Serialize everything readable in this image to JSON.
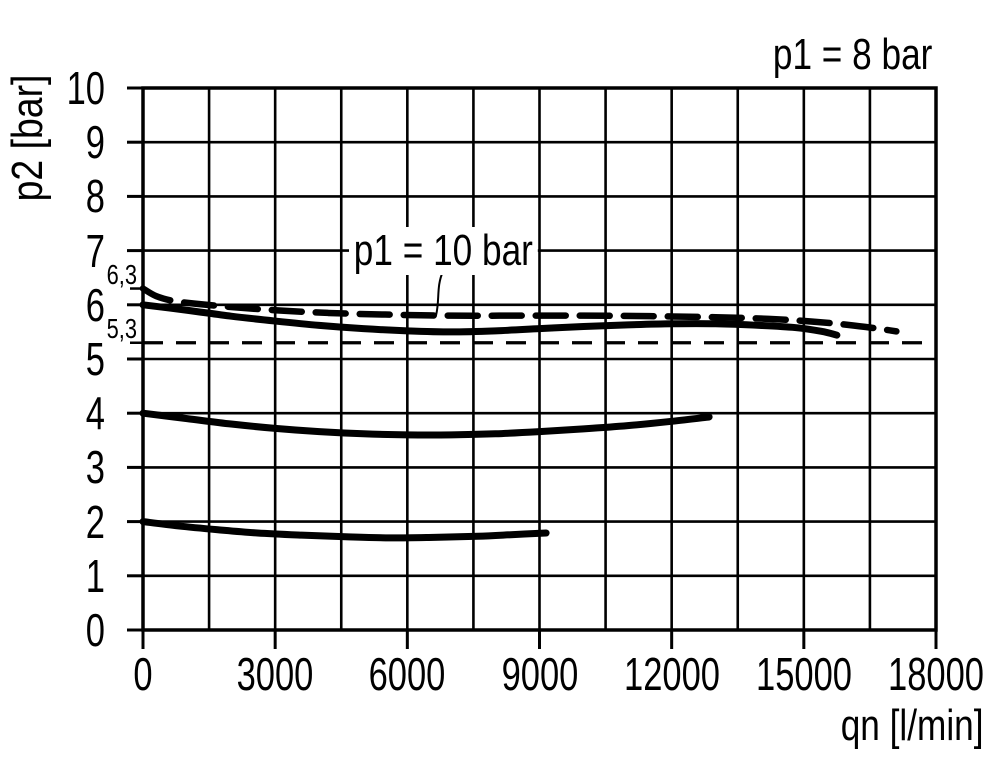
{
  "colors": {
    "ink": "#000000",
    "background": "#ffffff"
  },
  "chart_data": {
    "type": "line",
    "xlabel": "qn [l/min]",
    "ylabel": "p2 [bar]",
    "xlim": [
      0,
      18000
    ],
    "ylim": [
      0,
      10
    ],
    "grid": true,
    "legend_position": "none",
    "x_grid_step": 1500,
    "y_grid_step": 1,
    "x_tick_values": [
      0,
      3000,
      6000,
      9000,
      12000,
      15000,
      18000
    ],
    "x_tick_labels": [
      "0",
      "3000",
      "6000",
      "9000",
      "12000",
      "15000",
      "18000"
    ],
    "y_tick_values": [
      10,
      9,
      8,
      7,
      6,
      5,
      4,
      3,
      2,
      1,
      0
    ],
    "y_tick_labels": [
      "10",
      "9",
      "8",
      "7",
      "6",
      "5",
      "4",
      "3",
      "2",
      "1",
      "0"
    ],
    "y_marker_ticks": [
      {
        "label": "6,3",
        "value": 6.3
      },
      {
        "label": "5,3",
        "value": 5.3
      }
    ],
    "reference_lines": [
      {
        "y": 5.3,
        "style": "dashed"
      }
    ],
    "annotations": [
      {
        "id": "p1-8bar",
        "text": "p1 = 8 bar"
      },
      {
        "id": "p1-10bar",
        "text": "p1 = 10 bar",
        "leader_from": [
          6810,
          6.62
        ],
        "leader_to": [
          6650,
          5.8
        ]
      }
    ],
    "series": [
      {
        "id": "inlet-10bar",
        "name": "p1 = 10 bar",
        "style": "dashed",
        "points": [
          [
            0,
            6.3
          ],
          [
            300,
            6.16
          ],
          [
            700,
            6.07
          ],
          [
            1200,
            6.02
          ],
          [
            2000,
            5.96
          ],
          [
            3000,
            5.9
          ],
          [
            4200,
            5.85
          ],
          [
            5500,
            5.82
          ],
          [
            7000,
            5.8
          ],
          [
            8500,
            5.8
          ],
          [
            10000,
            5.8
          ],
          [
            11500,
            5.79
          ],
          [
            13000,
            5.77
          ],
          [
            14200,
            5.74
          ],
          [
            15200,
            5.69
          ],
          [
            16000,
            5.63
          ],
          [
            16600,
            5.57
          ],
          [
            17100,
            5.51
          ]
        ]
      },
      {
        "id": "inlet-8bar-set-6bar",
        "name": "p1 = 8 bar",
        "style": "solid",
        "points": [
          [
            0,
            6.0
          ],
          [
            1000,
            5.9
          ],
          [
            2000,
            5.79
          ],
          [
            3000,
            5.7
          ],
          [
            4000,
            5.62
          ],
          [
            5000,
            5.56
          ],
          [
            6000,
            5.52
          ],
          [
            7000,
            5.5
          ],
          [
            8000,
            5.52
          ],
          [
            9000,
            5.56
          ],
          [
            10000,
            5.6
          ],
          [
            11000,
            5.63
          ],
          [
            12000,
            5.65
          ],
          [
            13000,
            5.65
          ],
          [
            14000,
            5.62
          ],
          [
            14800,
            5.58
          ],
          [
            15400,
            5.51
          ],
          [
            15750,
            5.44
          ]
        ]
      },
      {
        "id": "set-4bar",
        "style": "solid",
        "points": [
          [
            0,
            4.0
          ],
          [
            1000,
            3.9
          ],
          [
            2000,
            3.8
          ],
          [
            3000,
            3.72
          ],
          [
            4000,
            3.66
          ],
          [
            5000,
            3.62
          ],
          [
            6000,
            3.6
          ],
          [
            7000,
            3.6
          ],
          [
            8000,
            3.62
          ],
          [
            9000,
            3.66
          ],
          [
            10000,
            3.71
          ],
          [
            11000,
            3.77
          ],
          [
            12000,
            3.85
          ],
          [
            12850,
            3.93
          ]
        ]
      },
      {
        "id": "set-2bar",
        "style": "solid",
        "points": [
          [
            0,
            2.0
          ],
          [
            800,
            1.92
          ],
          [
            1700,
            1.85
          ],
          [
            2600,
            1.79
          ],
          [
            3600,
            1.75
          ],
          [
            4600,
            1.72
          ],
          [
            5600,
            1.7
          ],
          [
            6600,
            1.71
          ],
          [
            7600,
            1.73
          ],
          [
            8400,
            1.76
          ],
          [
            9150,
            1.79
          ]
        ]
      }
    ]
  }
}
